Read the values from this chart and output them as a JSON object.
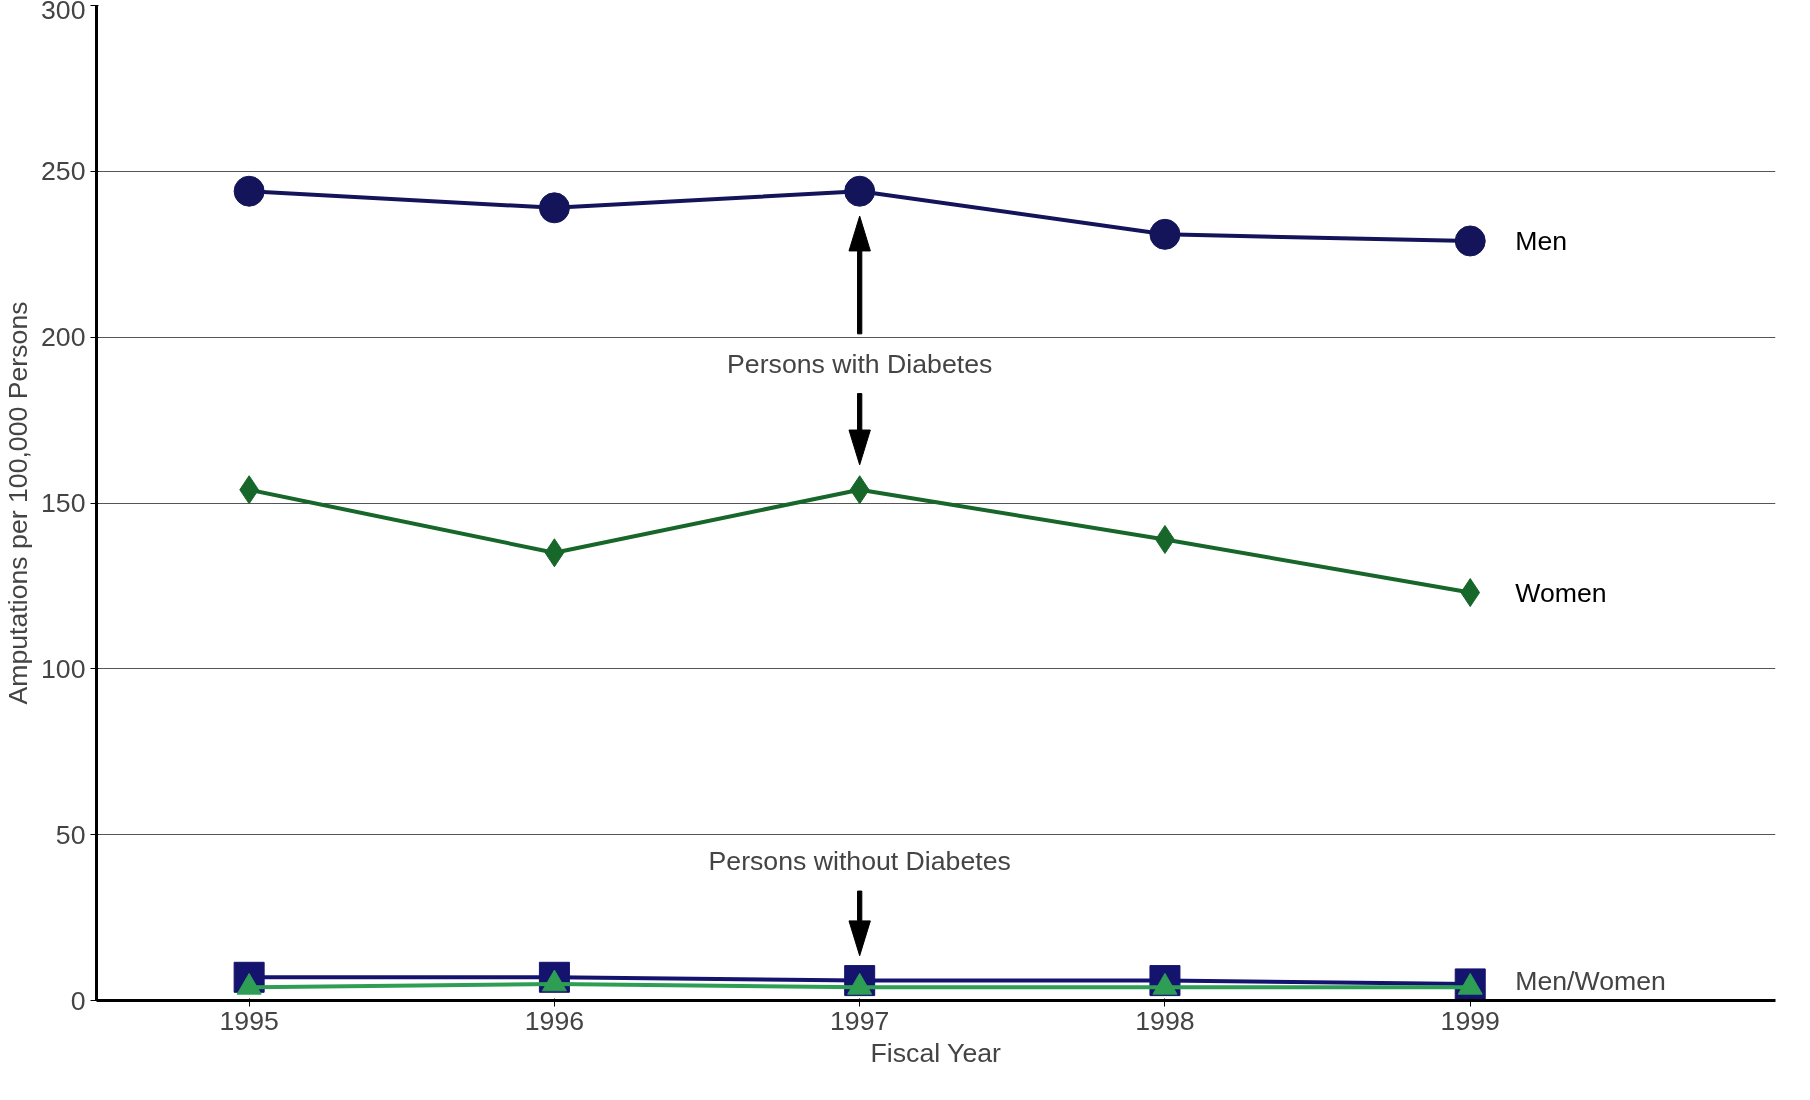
{
  "chart_data": {
    "type": "line",
    "xlabel": "Fiscal Year",
    "ylabel": "Amputations per 100,000 Persons",
    "x": [
      1995,
      1996,
      1997,
      1998,
      1999
    ],
    "xlim": [
      1994.5,
      2000.0
    ],
    "xticks": [
      1995,
      1996,
      1997,
      1998,
      1999
    ],
    "ylim": [
      0,
      300
    ],
    "yticks": [
      0,
      50,
      100,
      150,
      200,
      250,
      300
    ],
    "grid": "y",
    "series": [
      {
        "name": "Men",
        "color": "#14145a",
        "marker": "circle",
        "values": [
          244,
          239,
          244,
          231,
          229
        ]
      },
      {
        "name": "Women",
        "color": "#17662a",
        "marker": "diamond",
        "values": [
          154,
          135,
          154,
          139,
          123
        ]
      },
      {
        "color": "#14146e",
        "marker": "square",
        "values": [
          7,
          7,
          6,
          6,
          5
        ]
      },
      {
        "color": "#2e9e55",
        "marker": "triangle",
        "values": [
          4,
          5,
          4,
          4,
          4
        ]
      }
    ],
    "annotations": [
      "Persons with Diabetes",
      "Persons without Diabetes",
      {
        "text": "Men/Women",
        "x": 1999,
        "y": 6
      }
    ]
  }
}
